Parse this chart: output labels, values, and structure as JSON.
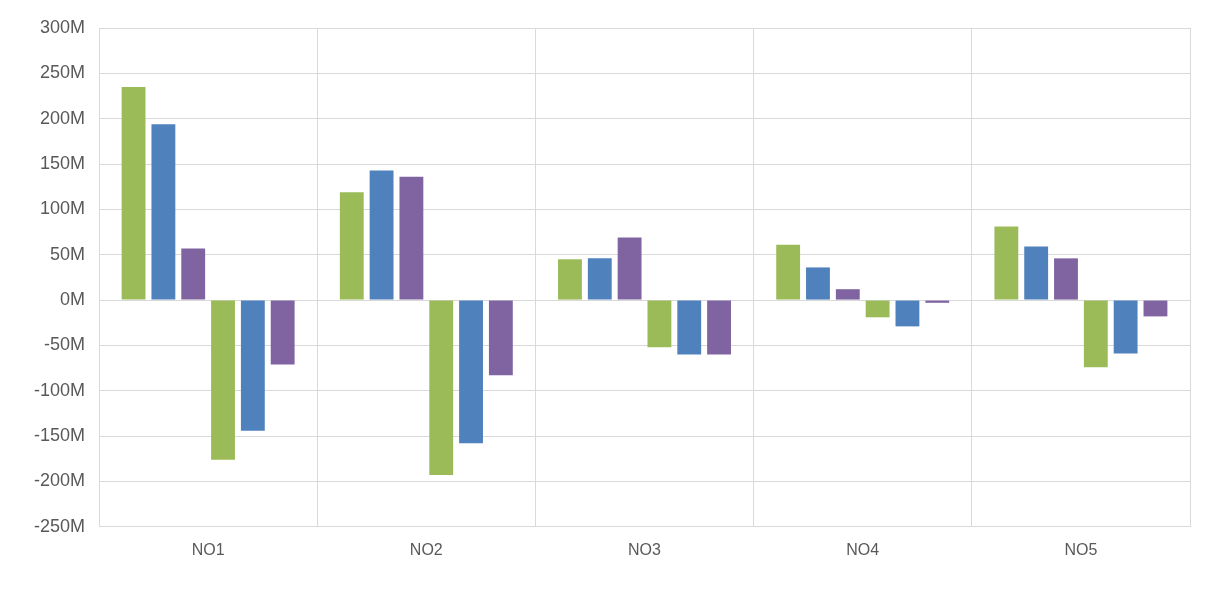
{
  "chart_data": {
    "type": "bar",
    "categories": [
      "NO1",
      "NO2",
      "NO3",
      "NO4",
      "NO5"
    ],
    "series": [
      {
        "color": "#9bbb59",
        "values": [
          235,
          119,
          45,
          61,
          81
        ]
      },
      {
        "color": "#4f81bd",
        "values": [
          194,
          143,
          46,
          36,
          59
        ]
      },
      {
        "color": "#8064a2",
        "values": [
          57,
          136,
          69,
          12,
          46
        ]
      },
      {
        "color": "#9bbb59",
        "values": [
          -176,
          -193,
          -52,
          -19,
          -74
        ]
      },
      {
        "color": "#4f81bd",
        "values": [
          -144,
          -158,
          -60,
          -29,
          -59
        ]
      },
      {
        "color": "#8064a2",
        "values": [
          -71,
          -83,
          -60,
          -3,
          -18
        ]
      }
    ],
    "ylim": [
      -250,
      300
    ],
    "yticks": [
      {
        "value": -250,
        "label": "-250M"
      },
      {
        "value": -200,
        "label": "-200M"
      },
      {
        "value": -150,
        "label": "-150M"
      },
      {
        "value": -100,
        "label": "-100M"
      },
      {
        "value": -50,
        "label": "-50M"
      },
      {
        "value": 0,
        "label": "0M"
      },
      {
        "value": 50,
        "label": "50M"
      },
      {
        "value": 100,
        "label": "100M"
      },
      {
        "value": 150,
        "label": "150M"
      },
      {
        "value": 200,
        "label": "200M"
      },
      {
        "value": 250,
        "label": "250M"
      },
      {
        "value": 300,
        "label": "300M"
      }
    ],
    "grid": true,
    "legend": false
  }
}
